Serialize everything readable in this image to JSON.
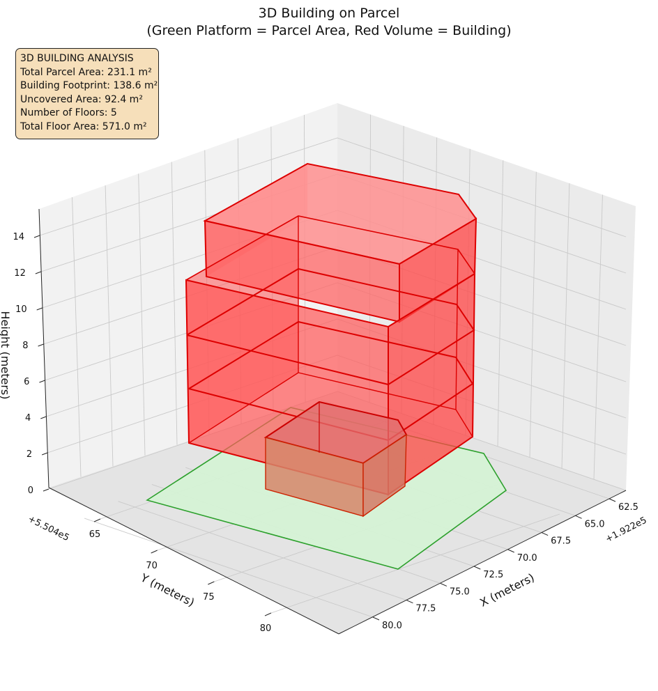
{
  "figure": {
    "title_line1": "3D Building on Parcel",
    "title_line2": "(Green Platform = Parcel Area, Red Volume = Building)"
  },
  "info_box": {
    "heading": "3D BUILDING ANALYSIS",
    "lines": [
      "Total Parcel Area: 231.1 m²",
      "Building Footprint: 138.6 m²",
      "Uncovered Area: 92.4 m²",
      "Number of Floors: 5",
      "Total Floor Area: 571.0 m²"
    ]
  },
  "chart_data": {
    "type": "3d-polygon",
    "x_axis": {
      "label": "X (meters)",
      "offset_label": "+1.922e5",
      "ticks": [
        "62.5",
        "65.0",
        "67.5",
        "70.0",
        "72.5",
        "75.0",
        "77.5",
        "80.0"
      ]
    },
    "y_axis": {
      "label": "Y (meters)",
      "offset_label": "+5.504e5",
      "ticks": [
        "65",
        "70",
        "75",
        "80"
      ]
    },
    "z_axis": {
      "label": "Height (meters)",
      "ticks": [
        "0",
        "2",
        "4",
        "6",
        "8",
        "10",
        "12",
        "14"
      ]
    },
    "parcel": {
      "color": "#2ca02c",
      "fill": "#d5f2d5",
      "z": 0,
      "outline_xy": [
        [
          63.4,
          63.3
        ],
        [
          66.6,
          62.8
        ],
        [
          69.9,
          62.8
        ],
        [
          73.9,
          64.5
        ],
        [
          76.8,
          68.2
        ],
        [
          78.2,
          76.0
        ],
        [
          64.8,
          82.3
        ]
      ]
    },
    "building": {
      "color": "#dd0000",
      "fill": "#ff4a4a",
      "floors": 5,
      "floor_height_m": 3,
      "footprint_xy": [
        [
          68.4,
          66.3
        ],
        [
          75.9,
          67.9
        ],
        [
          76.1,
          69.4
        ],
        [
          74.4,
          74.3
        ],
        [
          66.3,
          74.9
        ],
        [
          65.3,
          68.9
        ],
        [
          66.3,
          67.0
        ]
      ],
      "footprint_area_m2": 138.6,
      "floor_areas_m2": [
        40.7,
        138.6,
        138.6,
        138.6,
        114.5
      ],
      "total_floor_area_m2": 571.0
    }
  }
}
